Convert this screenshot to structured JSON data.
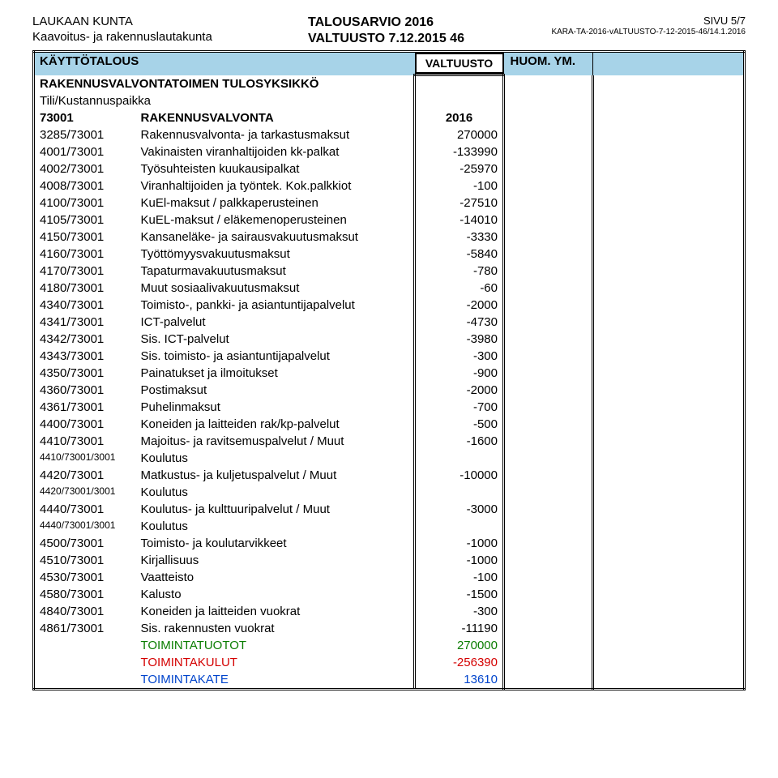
{
  "header": {
    "org": "LAUKAAN KUNTA",
    "board": "Kaavoitus- ja rakennuslautakunta",
    "title1": "TALOUSARVIO 2016",
    "title2": "VALTUUSTO 7.12.2015 46",
    "page": "SIVU 5/7",
    "docref": "KARA-TA-2016-vALTUUSTO-7-12-2015-46/14.1.2016"
  },
  "band": {
    "title": "KÄYTTÖTALOUS",
    "valt": "VALTUUSTO",
    "huom": "HUOM. YM."
  },
  "section": "RAKENNUSVALVONTATOIMEN TULOSYKSIKKÖ",
  "subsection": "Tili/Kustannuspaikka",
  "unit": {
    "code": "73001",
    "desc": "RAKENNUSVALVONTA",
    "val": "2016"
  },
  "rows": [
    {
      "code": "3285/73001",
      "desc": "Rakennusvalvonta- ja tarkastusmaksut",
      "val": "270000"
    },
    {
      "code": "4001/73001",
      "desc": "Vakinaisten viranhaltijoiden kk-palkat",
      "val": "-133990"
    },
    {
      "code": "4002/73001",
      "desc": "Työsuhteisten kuukausipalkat",
      "val": "-25970"
    },
    {
      "code": "4008/73001",
      "desc": "Viranhaltijoiden ja työntek. Kok.palkkiot",
      "val": "-100"
    },
    {
      "code": "4100/73001",
      "desc": "KuEl-maksut / palkkaperusteinen",
      "val": "-27510"
    },
    {
      "code": "4105/73001",
      "desc": "KuEL-maksut / eläkemenoperusteinen",
      "val": "-14010"
    },
    {
      "code": "4150/73001",
      "desc": "Kansaneläke- ja sairausvakuutusmaksut",
      "val": "-3330"
    },
    {
      "code": "4160/73001",
      "desc": "Työttömyysvakuutusmaksut",
      "val": "-5840"
    },
    {
      "code": "4170/73001",
      "desc": "Tapaturmavakuutusmaksut",
      "val": "-780"
    },
    {
      "code": "4180/73001",
      "desc": "Muut sosiaalivakuutusmaksut",
      "val": "-60"
    },
    {
      "code": "4340/73001",
      "desc": "Toimisto-, pankki- ja asiantuntijapalvelut",
      "val": "-2000"
    },
    {
      "code": "4341/73001",
      "desc": "ICT-palvelut",
      "val": "-4730"
    },
    {
      "code": "4342/73001",
      "desc": "Sis. ICT-palvelut",
      "val": "-3980"
    },
    {
      "code": "4343/73001",
      "desc": "Sis. toimisto- ja asiantuntijapalvelut",
      "val": "-300"
    },
    {
      "code": "4350/73001",
      "desc": "Painatukset ja ilmoitukset",
      "val": "-900"
    },
    {
      "code": "4360/73001",
      "desc": "Postimaksut",
      "val": "-2000"
    },
    {
      "code": "4361/73001",
      "desc": "Puhelinmaksut",
      "val": "-700"
    },
    {
      "code": "4400/73001",
      "desc": "Koneiden ja laitteiden rak/kp-palvelut",
      "val": "-500"
    },
    {
      "code": "4410/73001",
      "desc": "Majoitus- ja ravitsemuspalvelut / Muut",
      "val": "-1600"
    },
    {
      "code": "4410/73001/3001",
      "desc": "Koulutus",
      "val": "",
      "small": true
    },
    {
      "code": "4420/73001",
      "desc": "Matkustus- ja kuljetuspalvelut / Muut",
      "val": "-10000"
    },
    {
      "code": "4420/73001/3001",
      "desc": "Koulutus",
      "val": "",
      "small": true
    },
    {
      "code": "4440/73001",
      "desc": "Koulutus- ja kulttuuripalvelut / Muut",
      "val": "-3000"
    },
    {
      "code": "4440/73001/3001",
      "desc": "Koulutus",
      "val": "",
      "small": true
    },
    {
      "code": "4500/73001",
      "desc": "Toimisto- ja koulutarvikkeet",
      "val": "-1000"
    },
    {
      "code": "4510/73001",
      "desc": "Kirjallisuus",
      "val": "-1000"
    },
    {
      "code": "4530/73001",
      "desc": "Vaatteisto",
      "val": "-100"
    },
    {
      "code": "4580/73001",
      "desc": "Kalusto",
      "val": "-1500"
    },
    {
      "code": "4840/73001",
      "desc": "Koneiden ja laitteiden vuokrat",
      "val": "-300"
    },
    {
      "code": "4861/73001",
      "desc": "Sis. rakennusten vuokrat",
      "val": "-11190"
    }
  ],
  "totals": [
    {
      "label": "TOIMINTATUOTOT",
      "val": "270000",
      "color": "c-green"
    },
    {
      "label": "TOIMINTAKULUT",
      "val": "-256390",
      "color": "c-red"
    },
    {
      "label": "TOIMINTAKATE",
      "val": "13610",
      "color": "c-blue"
    }
  ]
}
